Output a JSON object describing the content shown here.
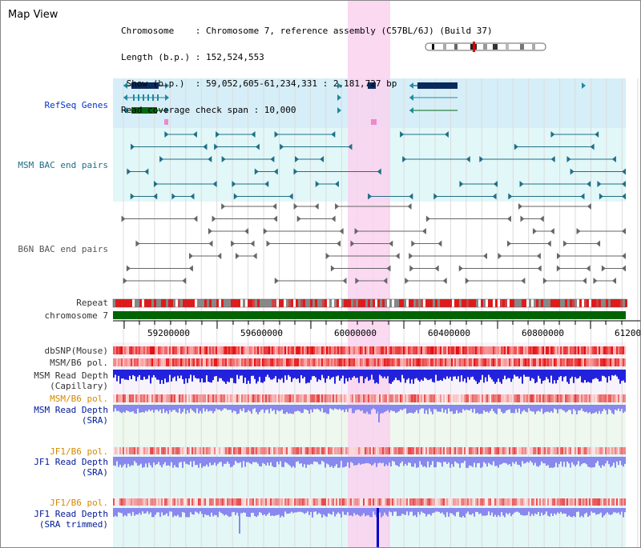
{
  "page": {
    "title": "Map View"
  },
  "info": {
    "line1": "Chromosome    : Chromosome 7, reference assembly (C57BL/6J) (Build 37)",
    "line2": "Length (b.p.) : 152,524,553",
    "line3": " Show (b.p.)  : 59,052,605-61,234,331 : 2,181,727 bp",
    "line4": "Read coverage check span : 10,000"
  },
  "tracks": {
    "refseq": "RefSeq Genes",
    "msm_bac": "MSM BAC end pairs",
    "b6n_bac": "B6N BAC end pairs",
    "repeat": "Repeat",
    "chrom": "chromosome 7",
    "dbsnp": "dbSNP(Mouse)",
    "msm_pol": "MSM/B6 pol.",
    "msm_depth_cap": "MSM Read Depth\n(Capillary)",
    "msm_pol_sra": "MSM/B6 pol.",
    "msm_depth_sra": "MSM Read Depth\n(SRA)",
    "jf1_pol": "JF1/B6 pol.",
    "jf1_depth": "JF1 Read Depth\n(SRA)",
    "jf1_pol2": "JF1/B6 pol.",
    "jf1_depth_trim": "JF1 Read Depth\n(SRA trimmed)"
  },
  "axis": {
    "ticks": [
      "59200000",
      "59600000",
      "60000000",
      "60400000",
      "60800000",
      "61200000"
    ]
  },
  "colors": {
    "highlight": "#f9d2ef",
    "refseq_bg": "#d6eef8",
    "bac_bg": "#e2f7f8",
    "gene_navy": "#0a2a5c",
    "gene_teal": "#1f8aa0",
    "gene_green": "#006a10",
    "bac_teal": "#1f6f86",
    "bac_grey": "#666666",
    "chrom_green": "#006400",
    "snp_red": "#e02020",
    "depth_blue": "#2222dd",
    "depth_light": "#8888ee"
  }
}
